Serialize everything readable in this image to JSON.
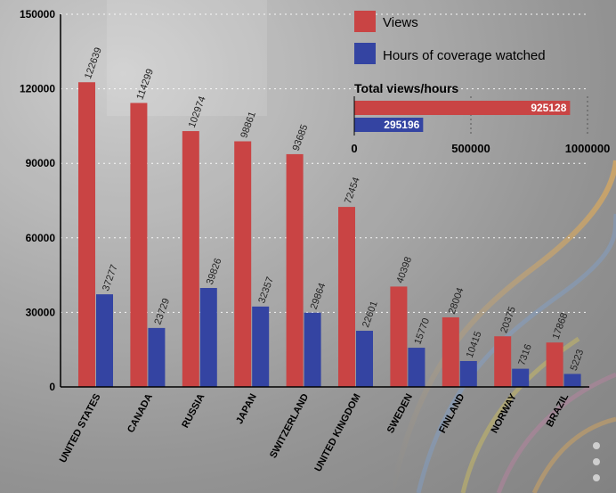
{
  "colors": {
    "views": "#c94444",
    "hours": "#3444a2",
    "grid": "#ffffff",
    "axis": "#000000"
  },
  "chart_data": [
    {
      "type": "bar",
      "categories": [
        "UNITED STATES",
        "CANADA",
        "RUSSIA",
        "JAPAN",
        "SWITZERLAND",
        "UNITED KINGDOM",
        "SWEDEN",
        "FINLAND",
        "NORWAY",
        "BRAZIL"
      ],
      "series": [
        {
          "name": "Views",
          "values": [
            122639,
            114299,
            102974,
            98861,
            93685,
            72454,
            40398,
            28004,
            20375,
            17868
          ]
        },
        {
          "name": "Hours of coverage watched",
          "values": [
            37277,
            23729,
            39826,
            32357,
            29864,
            22601,
            15770,
            10415,
            7316,
            5223
          ]
        }
      ],
      "y_ticks": [
        "0",
        "30000",
        "60000",
        "90000",
        "120000",
        "150000"
      ],
      "ylim": [
        0,
        150000
      ],
      "grid": true,
      "legend": "top-right"
    },
    {
      "type": "bar",
      "orientation": "horizontal",
      "title": "Total views/hours",
      "bars": [
        {
          "series": "Views",
          "value": 925128,
          "label": "925128"
        },
        {
          "series": "Hours of coverage watched",
          "value": 295196,
          "label": "295196"
        }
      ],
      "x_ticks": [
        "0",
        "500000",
        "1000000"
      ],
      "xlim": [
        0,
        1000000
      ],
      "grid": true
    }
  ]
}
